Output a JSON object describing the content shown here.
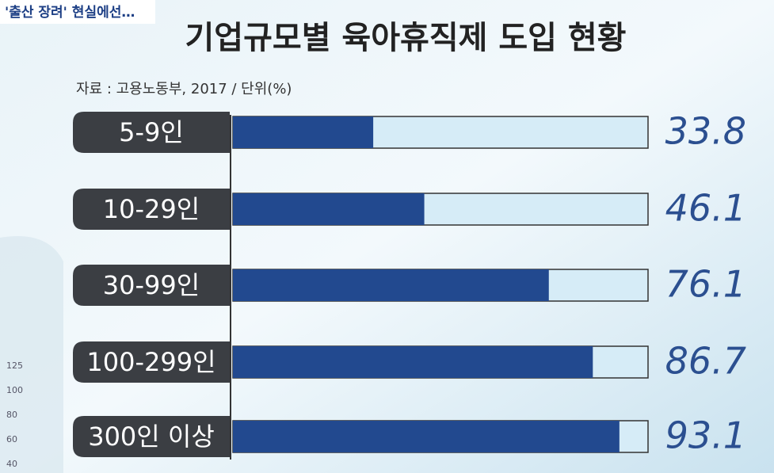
{
  "overlay": {
    "tag": "'출산 장려' 현실에선…"
  },
  "background": {
    "bottle_markings": [
      "125",
      "100",
      "80",
      "60",
      "40"
    ]
  },
  "chart_data": {
    "type": "bar",
    "orientation": "horizontal",
    "title": "기업규모별 육아휴직제 도입 현황",
    "subtitle": "자료 : 고용노동부, 2017 / 단위(%)",
    "categories": [
      "5-9인",
      "10-29인",
      "30-99인",
      "100-299인",
      "300인 이상"
    ],
    "values": [
      33.8,
      46.1,
      76.1,
      86.7,
      93.1
    ],
    "color": "#22498f",
    "track_color": "#d6ecf7",
    "label_color": "#2b4f90",
    "xlim": [
      0,
      100
    ]
  }
}
